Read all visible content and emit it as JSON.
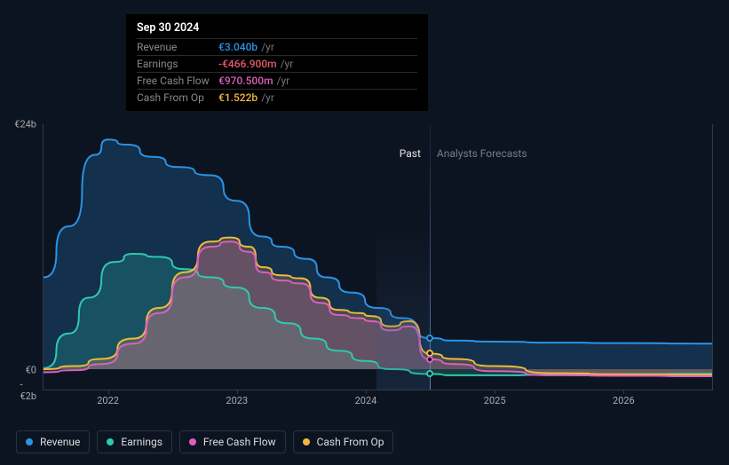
{
  "background_color": "#0d1421",
  "tooltip": {
    "title": "Sep 30 2024",
    "rows": [
      {
        "label": "Revenue",
        "value": "€3.040b",
        "unit": "/yr",
        "color": "#2994e6"
      },
      {
        "label": "Earnings",
        "value": "-€466.900m",
        "unit": "/yr",
        "color": "#e65a6f"
      },
      {
        "label": "Free Cash Flow",
        "value": "€970.500m",
        "unit": "/yr",
        "color": "#dc5fbf"
      },
      {
        "label": "Cash From Op",
        "value": "€1.522b",
        "unit": "/yr",
        "color": "#f0b93f"
      }
    ]
  },
  "legend": [
    {
      "label": "Revenue",
      "color": "#2994e6"
    },
    {
      "label": "Earnings",
      "color": "#2fc9b0"
    },
    {
      "label": "Free Cash Flow",
      "color": "#dc5fbf"
    },
    {
      "label": "Cash From Op",
      "color": "#f0b93f"
    }
  ],
  "sections": {
    "past": "Past",
    "forecast": "Analysts Forecasts",
    "split_x": 0.576
  },
  "cursor": {
    "x": 0.576
  },
  "markers": [
    {
      "series": "revenue",
      "color": "#2994e6",
      "y": 3.04
    },
    {
      "series": "cash_from_op",
      "color": "#f0b93f",
      "y": 1.522
    },
    {
      "series": "free_cash_flow",
      "color": "#dc5fbf",
      "y": 0.97
    },
    {
      "series": "earnings",
      "color": "#2fc9b0",
      "y": -0.4669
    }
  ],
  "axes": {
    "y": {
      "min": -2,
      "max": 24,
      "ticks": [
        {
          "v": 24,
          "label": "€24b"
        },
        {
          "v": 0,
          "label": "€0"
        },
        {
          "v": -2,
          "label": "-€2b"
        }
      ],
      "grid_color": "#333a48"
    },
    "x": {
      "min": 2021.5,
      "max": 2026.7,
      "ticks": [
        {
          "v": 2022,
          "label": "2022"
        },
        {
          "v": 2023,
          "label": "2023"
        },
        {
          "v": 2024,
          "label": "2024"
        },
        {
          "v": 2025,
          "label": "2025"
        },
        {
          "v": 2026,
          "label": "2026"
        }
      ]
    }
  },
  "series": [
    {
      "name": "revenue",
      "color": "#2994e6",
      "fill_opacity": 0.22,
      "points": [
        [
          2021.5,
          9.0
        ],
        [
          2021.7,
          14.0
        ],
        [
          2021.9,
          21.0
        ],
        [
          2022.0,
          22.5
        ],
        [
          2022.15,
          22.0
        ],
        [
          2022.35,
          20.8
        ],
        [
          2022.55,
          19.8
        ],
        [
          2022.8,
          19.0
        ],
        [
          2023.0,
          16.5
        ],
        [
          2023.2,
          13.0
        ],
        [
          2023.35,
          12.0
        ],
        [
          2023.55,
          10.8
        ],
        [
          2023.7,
          9.0
        ],
        [
          2023.9,
          7.5
        ],
        [
          2024.1,
          6.0
        ],
        [
          2024.3,
          5.0
        ],
        [
          2024.5,
          3.04
        ],
        [
          2024.7,
          2.8
        ],
        [
          2025.0,
          2.7
        ],
        [
          2025.5,
          2.6
        ],
        [
          2026.0,
          2.55
        ],
        [
          2026.7,
          2.5
        ]
      ]
    },
    {
      "name": "earnings",
      "color": "#2fc9b0",
      "fill_opacity": 0.22,
      "points": [
        [
          2021.5,
          0.1
        ],
        [
          2021.7,
          3.5
        ],
        [
          2021.85,
          7.0
        ],
        [
          2022.05,
          10.5
        ],
        [
          2022.2,
          11.3
        ],
        [
          2022.4,
          11.0
        ],
        [
          2022.6,
          9.8
        ],
        [
          2022.8,
          9.0
        ],
        [
          2023.0,
          8.0
        ],
        [
          2023.2,
          6.0
        ],
        [
          2023.4,
          4.5
        ],
        [
          2023.6,
          3.0
        ],
        [
          2023.8,
          1.8
        ],
        [
          2024.0,
          0.8
        ],
        [
          2024.2,
          0.0
        ],
        [
          2024.5,
          -0.47
        ],
        [
          2024.7,
          -0.6
        ],
        [
          2025.0,
          -0.6
        ],
        [
          2025.5,
          -0.55
        ],
        [
          2026.0,
          -0.5
        ],
        [
          2026.7,
          -0.45
        ]
      ]
    },
    {
      "name": "cash_from_op",
      "color": "#f0b93f",
      "fill_opacity": 0.22,
      "points": [
        [
          2021.5,
          0.0
        ],
        [
          2021.75,
          0.3
        ],
        [
          2021.95,
          1.0
        ],
        [
          2022.2,
          3.0
        ],
        [
          2022.4,
          6.0
        ],
        [
          2022.6,
          9.5
        ],
        [
          2022.8,
          12.5
        ],
        [
          2022.95,
          12.9
        ],
        [
          2023.1,
          12.0
        ],
        [
          2023.2,
          10.0
        ],
        [
          2023.35,
          9.2
        ],
        [
          2023.5,
          8.9
        ],
        [
          2023.65,
          7.0
        ],
        [
          2023.8,
          5.8
        ],
        [
          2023.95,
          5.5
        ],
        [
          2024.05,
          5.2
        ],
        [
          2024.2,
          4.2
        ],
        [
          2024.35,
          4.7
        ],
        [
          2024.5,
          1.52
        ],
        [
          2024.7,
          1.0
        ],
        [
          2025.0,
          0.3
        ],
        [
          2025.5,
          -0.4
        ],
        [
          2026.0,
          -0.5
        ],
        [
          2026.7,
          -0.55
        ]
      ]
    },
    {
      "name": "free_cash_flow",
      "color": "#dc5fbf",
      "fill_opacity": 0.22,
      "points": [
        [
          2021.5,
          -0.3
        ],
        [
          2021.75,
          -0.1
        ],
        [
          2021.95,
          0.5
        ],
        [
          2022.2,
          2.5
        ],
        [
          2022.4,
          5.5
        ],
        [
          2022.6,
          9.0
        ],
        [
          2022.8,
          12.0
        ],
        [
          2022.95,
          12.5
        ],
        [
          2023.1,
          11.5
        ],
        [
          2023.2,
          9.5
        ],
        [
          2023.35,
          8.7
        ],
        [
          2023.5,
          8.4
        ],
        [
          2023.65,
          6.5
        ],
        [
          2023.8,
          5.3
        ],
        [
          2023.95,
          5.0
        ],
        [
          2024.05,
          4.7
        ],
        [
          2024.2,
          3.8
        ],
        [
          2024.35,
          4.2
        ],
        [
          2024.5,
          0.97
        ],
        [
          2024.7,
          0.5
        ],
        [
          2025.0,
          -0.2
        ],
        [
          2025.5,
          -0.6
        ],
        [
          2026.0,
          -0.65
        ],
        [
          2026.7,
          -0.7
        ]
      ]
    }
  ]
}
